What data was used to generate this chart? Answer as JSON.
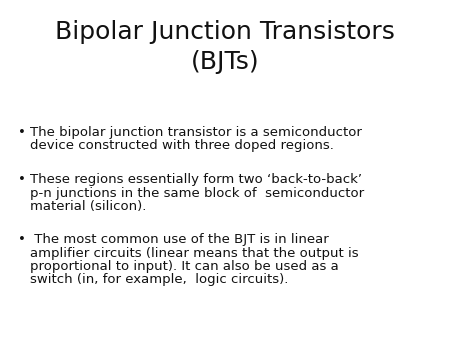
{
  "title": "Bipolar Junction Transistors\n(BJTs)",
  "title_fontsize": 18,
  "title_font": "DejaVu Sans",
  "body_font": "DejaVu Sans",
  "body_fontsize": 9.5,
  "background_color": "#ffffff",
  "text_color": "#111111",
  "bullet_char": "•",
  "bullets": [
    {
      "text": "The bipolar junction transistor is a semiconductor\ndevice constructed with three doped regions."
    },
    {
      "text": "These regions essentially form two ‘back-to-back’\np-n junctions in the same block of  semiconductor\nmaterial (silicon)."
    },
    {
      "text": " The most common use of the BJT is in linear\namplifier circuits (linear means that the output is\nproportional to input). It can also be used as a\nswitch (in, for example,  logic circuits)."
    }
  ]
}
